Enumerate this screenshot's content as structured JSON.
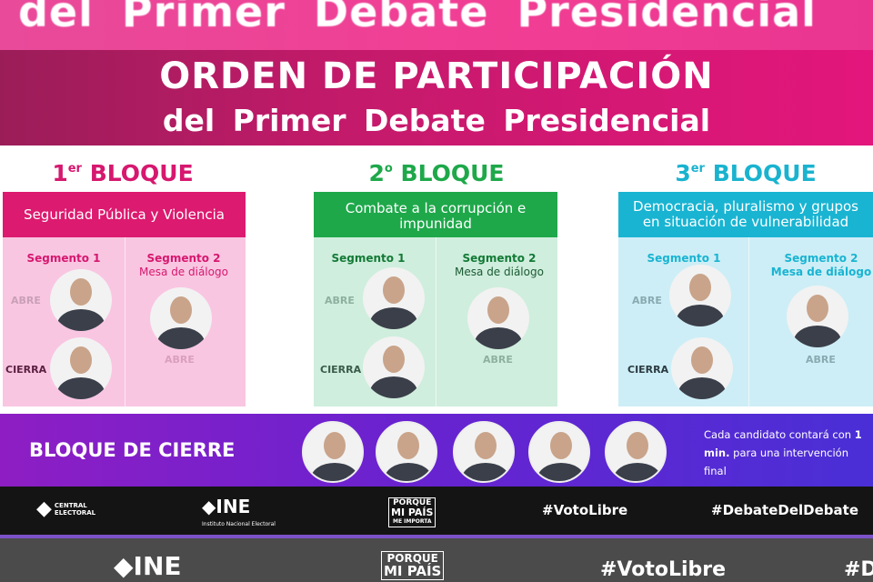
{
  "banner_top_text": "del Primer Debate Presidencial",
  "header": {
    "title": "ORDEN DE PARTICIPACIÓN",
    "subtitle": "del Primer Debate Presidencial"
  },
  "colors": {
    "magenta": "#d6186f",
    "green": "#1ea84a",
    "cyan": "#1ab3cf",
    "purple": "#6a22cf"
  },
  "blocks": [
    {
      "num": "1",
      "sup": "er",
      "label": "BLOQUE",
      "topic": "Seguridad Pública y Violencia",
      "seg1": "Segmento 1",
      "seg2": "Segmento 2",
      "seg2_sub": "Mesa de diálogo",
      "abre": "ABRE",
      "cierra": "CIERRA",
      "seg2_role": "ABRE"
    },
    {
      "num": "2",
      "sup": "o",
      "label": "BLOQUE",
      "topic": "Combate a la corrupción e impunidad",
      "seg1": "Segmento 1",
      "seg2": "Segmento 2",
      "seg2_sub": "Mesa de diálogo",
      "abre": "ABRE",
      "cierra": "CIERRA",
      "seg2_role": "ABRE"
    },
    {
      "num": "3",
      "sup": "er",
      "label": "BLOQUE",
      "topic": "Democracia, pluralismo y grupos en situación de vulnerabilidad",
      "seg1": "Segmento 1",
      "seg2": "Segmento 2",
      "seg2_sub": "Mesa de diálogo",
      "abre": "ABRE",
      "cierra": "CIERRA",
      "seg2_role": "ABRE"
    }
  ],
  "cierre": {
    "title": "BLOQUE DE CIERRE",
    "note_pre": "Cada candidato contará con ",
    "note_bold": "1 min.",
    "note_post": " para una intervención final"
  },
  "footer": {
    "central": "CENTRAL ELECTORAL",
    "ine": "INE",
    "ine_sub": "Instituto Nacional Electoral",
    "porque": "PORQUE",
    "mipais": "MI PAÍS",
    "meimporta": "ME IMPORTA",
    "tag1": "#VotoLibre",
    "tag2": "#DebateDelDebate",
    "tag2_cropped": "#D"
  }
}
